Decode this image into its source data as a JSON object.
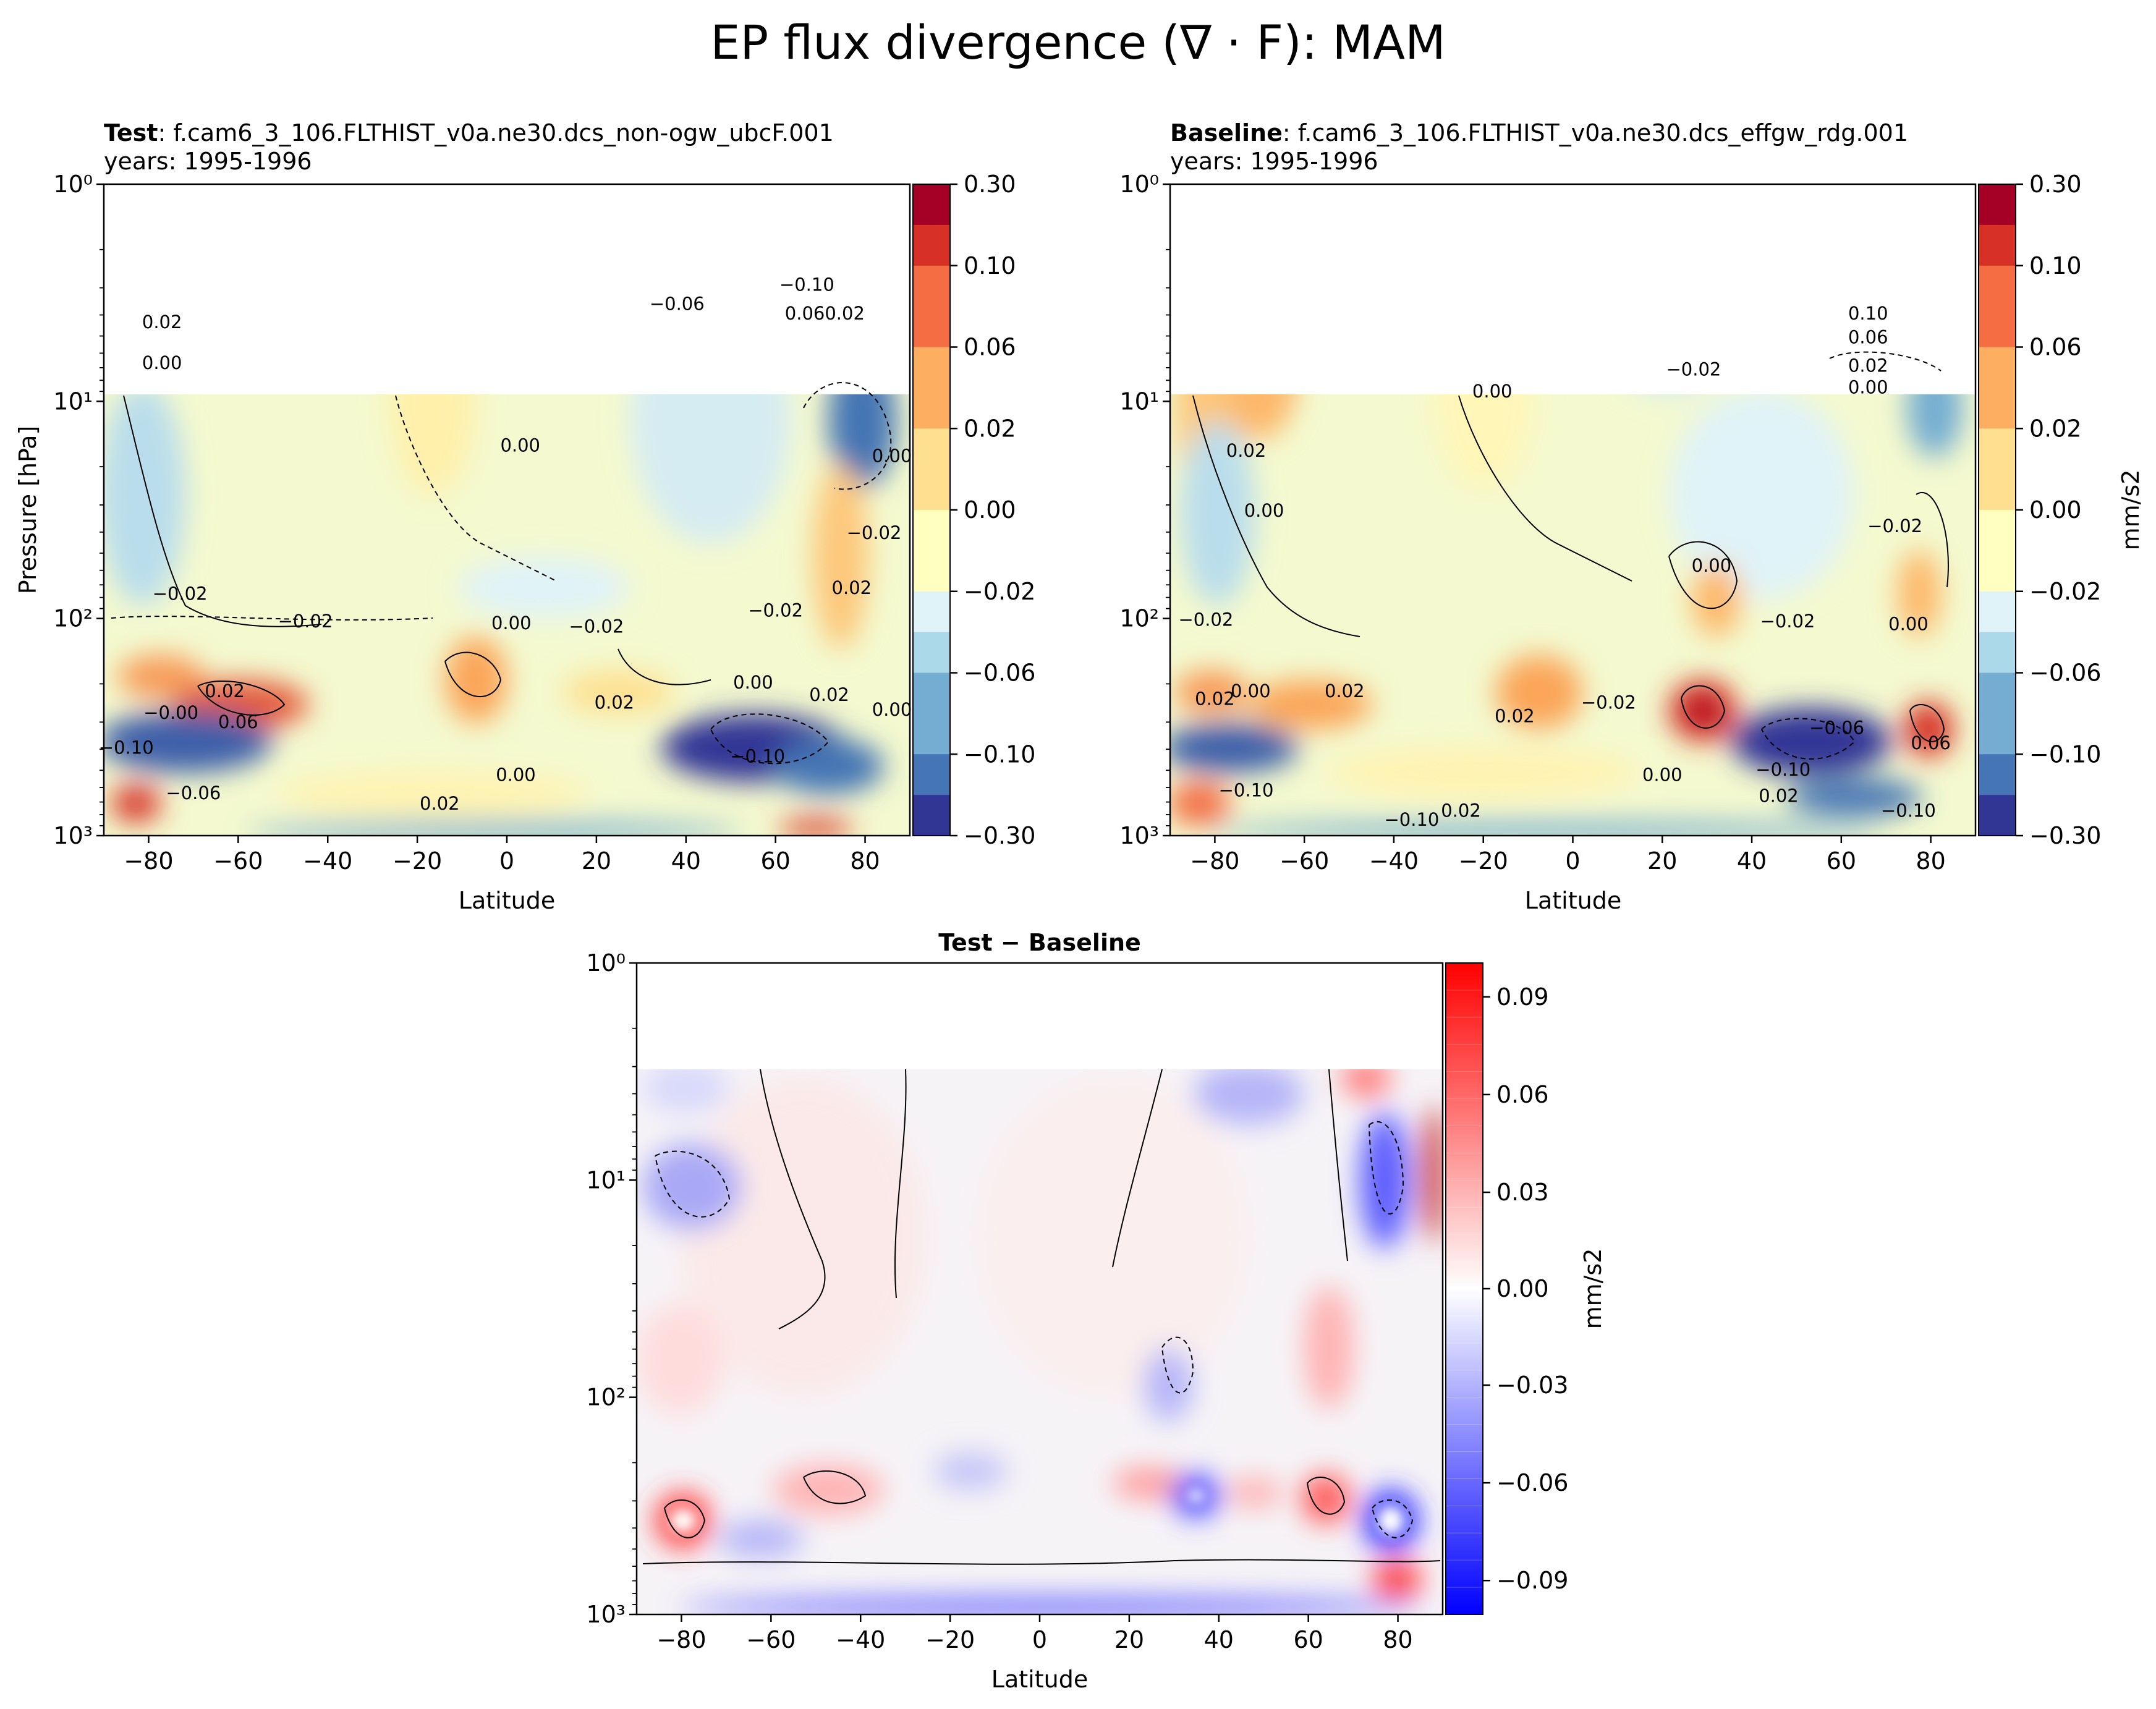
{
  "figure": {
    "title": "EP flux divergence (∇ · F): MAM"
  },
  "colors": {
    "rdylbu": [
      "#313695",
      "#4575b4",
      "#74add1",
      "#abd9e9",
      "#e0f3f8",
      "#ffffbf",
      "#fee090",
      "#fdae61",
      "#f46d43",
      "#d73027",
      "#a50026"
    ],
    "bwr_neg": "#0000ff",
    "bwr_mid": "#ffffff",
    "bwr_pos": "#ff0000"
  },
  "chart_data": [
    {
      "type": "heatmap",
      "panel": "test",
      "title_bold": "Test",
      "title": ": f.cam6_3_106.FLTHIST_v0a.ne30.dcs_non-ogw_ubcF.001",
      "subtitle": "years: 1995-1996",
      "xlabel": "Latitude",
      "ylabel": "Pressure [hPa]",
      "xlim": [
        -90,
        90
      ],
      "ylim": [
        1000,
        1
      ],
      "yscale": "log",
      "xticks": [
        -80,
        -60,
        -40,
        -20,
        0,
        20,
        40,
        60,
        80
      ],
      "yticks": [
        {
          "value": 1,
          "label": "10⁰"
        },
        {
          "value": 10,
          "label": "10¹"
        },
        {
          "value": 100,
          "label": "10²"
        },
        {
          "value": 1000,
          "label": "10³"
        }
      ],
      "colorbar": {
        "ticks": [
          "0.30",
          "0.10",
          "0.06",
          "0.02",
          "0.00",
          "−0.02",
          "−0.06",
          "−0.10",
          "−0.30"
        ],
        "label": ""
      },
      "contour_labels": [
        {
          "text": "0.02",
          "lat": -77,
          "p": 4.6
        },
        {
          "text": "0.00",
          "lat": -77,
          "p": 7.1
        },
        {
          "text": "−0.06",
          "lat": 38,
          "p": 3.8
        },
        {
          "text": "−0.10",
          "lat": 67,
          "p": 3.1
        },
        {
          "text": "0.060.02",
          "lat": 71,
          "p": 4.2
        },
        {
          "text": "0.00",
          "lat": 3,
          "p": 17
        },
        {
          "text": "0.00",
          "lat": 86,
          "p": 19
        },
        {
          "text": "−0.02",
          "lat": -73,
          "p": 82
        },
        {
          "text": "−0.02",
          "lat": -45,
          "p": 110
        },
        {
          "text": "−0.02",
          "lat": 20,
          "p": 116
        },
        {
          "text": "0.02",
          "lat": 77,
          "p": 77
        },
        {
          "text": "−0.02",
          "lat": 82,
          "p": 43
        },
        {
          "text": "−0.02",
          "lat": 60,
          "p": 98
        },
        {
          "text": "0.00",
          "lat": 1,
          "p": 112
        },
        {
          "text": "0.02",
          "lat": -63,
          "p": 230
        },
        {
          "text": "0.06",
          "lat": -60,
          "p": 320
        },
        {
          "text": "−0.00",
          "lat": -75,
          "p": 290
        },
        {
          "text": "0.00",
          "lat": 55,
          "p": 210
        },
        {
          "text": "0.02",
          "lat": 72,
          "p": 240
        },
        {
          "text": "0.02",
          "lat": 24,
          "p": 260
        },
        {
          "text": "0.00",
          "lat": 2,
          "p": 560
        },
        {
          "text": "−0.10",
          "lat": 56,
          "p": 460
        },
        {
          "text": "−0.06",
          "lat": -70,
          "p": 680
        },
        {
          "text": "−0.10",
          "lat": -85,
          "p": 420
        },
        {
          "text": "0.00",
          "lat": 86,
          "p": 280
        },
        {
          "text": "0.02",
          "lat": -15,
          "p": 760
        }
      ]
    },
    {
      "type": "heatmap",
      "panel": "baseline",
      "title_bold": "Baseline",
      "title": ": f.cam6_3_106.FLTHIST_v0a.ne30.dcs_effgw_rdg.001",
      "subtitle": "years: 1995-1996",
      "xlabel": "Latitude",
      "ylabel": "",
      "xlim": [
        -90,
        90
      ],
      "ylim": [
        1000,
        1
      ],
      "yscale": "log",
      "xticks": [
        -80,
        -60,
        -40,
        -20,
        0,
        20,
        40,
        60,
        80
      ],
      "yticks": [
        {
          "value": 1,
          "label": "10⁰"
        },
        {
          "value": 10,
          "label": "10¹"
        },
        {
          "value": 100,
          "label": "10²"
        },
        {
          "value": 1000,
          "label": "10³"
        }
      ],
      "colorbar": {
        "ticks": [
          "0.30",
          "0.10",
          "0.06",
          "0.02",
          "0.00",
          "−0.02",
          "−0.06",
          "−0.10",
          "−0.30"
        ],
        "label": "mm/s2"
      },
      "contour_labels": [
        {
          "text": "0.10",
          "lat": 66,
          "p": 4.2
        },
        {
          "text": "0.06",
          "lat": 66,
          "p": 5.4
        },
        {
          "text": "0.02",
          "lat": 66,
          "p": 7.3
        },
        {
          "text": "0.00",
          "lat": 66,
          "p": 9.2
        },
        {
          "text": "−0.02",
          "lat": 27,
          "p": 7.6
        },
        {
          "text": "0.00",
          "lat": -18,
          "p": 9.6
        },
        {
          "text": "0.02",
          "lat": -73,
          "p": 18
        },
        {
          "text": "0.00",
          "lat": -69,
          "p": 34
        },
        {
          "text": "−0.02",
          "lat": 72,
          "p": 40
        },
        {
          "text": "0.00",
          "lat": 31,
          "p": 61
        },
        {
          "text": "−0.02",
          "lat": 48,
          "p": 110
        },
        {
          "text": "−0.02",
          "lat": -82,
          "p": 108
        },
        {
          "text": "0.00",
          "lat": 75,
          "p": 113
        },
        {
          "text": "0.02",
          "lat": -80,
          "p": 250
        },
        {
          "text": "0.00",
          "lat": -72,
          "p": 230
        },
        {
          "text": "0.02",
          "lat": -51,
          "p": 230
        },
        {
          "text": "0.02",
          "lat": -13,
          "p": 300
        },
        {
          "text": "−0.02",
          "lat": 8,
          "p": 260
        },
        {
          "text": "0.00",
          "lat": 20,
          "p": 560
        },
        {
          "text": "−0.06",
          "lat": 59,
          "p": 340
        },
        {
          "text": "−0.10",
          "lat": 47,
          "p": 530
        },
        {
          "text": "0.06",
          "lat": 80,
          "p": 400
        },
        {
          "text": "−0.10",
          "lat": 75,
          "p": 820
        },
        {
          "text": "−0.10",
          "lat": -73,
          "p": 660
        },
        {
          "text": "0.02",
          "lat": -25,
          "p": 820
        },
        {
          "text": "0.02",
          "lat": 46,
          "p": 700
        },
        {
          "text": "−0.10",
          "lat": -36,
          "p": 900
        }
      ]
    },
    {
      "type": "heatmap",
      "panel": "diff",
      "title_bold": "Test − Baseline",
      "title": "",
      "subtitle": "",
      "xlabel": "Latitude",
      "ylabel": "",
      "xlim": [
        -90,
        90
      ],
      "ylim": [
        1000,
        1
      ],
      "yscale": "log",
      "xticks": [
        -80,
        -60,
        -40,
        -20,
        0,
        20,
        40,
        60,
        80
      ],
      "yticks": [
        {
          "value": 1,
          "label": "10⁰"
        },
        {
          "value": 10,
          "label": "10¹"
        },
        {
          "value": 100,
          "label": "10²"
        },
        {
          "value": 1000,
          "label": "10³"
        }
      ],
      "colorbar": {
        "ticks": [
          "0.09",
          "0.06",
          "0.03",
          "0.00",
          "−0.03",
          "−0.06",
          "−0.09"
        ],
        "label": "mm/s2"
      },
      "contour_labels": []
    }
  ]
}
